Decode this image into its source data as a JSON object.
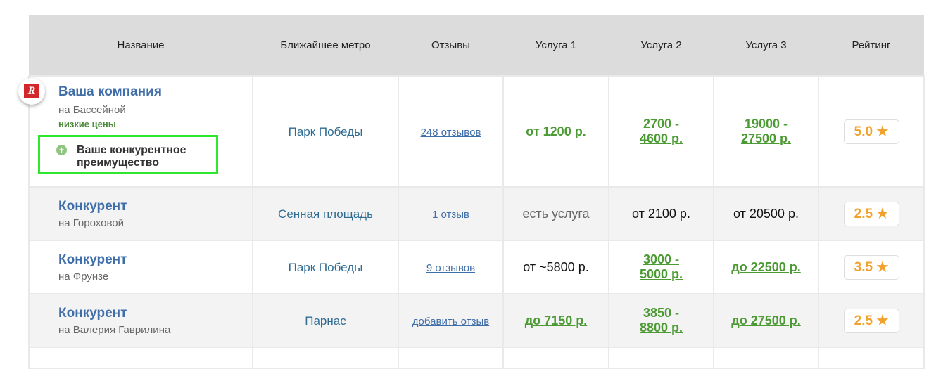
{
  "headers": [
    "Название",
    "Ближайшее метро",
    "Отзывы",
    "Услуга 1",
    "Услуга 2",
    "Услуга 3",
    "Рейтинг"
  ],
  "logo_text": "R",
  "rows": [
    {
      "name": "Ваша компания",
      "address": "на Бассейной",
      "tag": "низкие цены",
      "advantage": "Ваше конкурентное преимущество",
      "metro": "Парк Победы",
      "reviews": "248 отзывов",
      "s1": "от 1200 р.",
      "s2a": "2700 -",
      "s2b": "4600 р.",
      "s3a": "19000 -",
      "s3b": "27500 р.",
      "rating": "5.0"
    },
    {
      "name": "Конкурент",
      "address": "на Гороховой",
      "metro": "Сенная площадь",
      "reviews": "1 отзыв",
      "s1": "есть услуга",
      "s2": "от 2100 р.",
      "s3": "от 20500 р.",
      "rating": "2.5"
    },
    {
      "name": "Конкурент",
      "address": "на Фрунзе",
      "metro": "Парк Победы",
      "reviews": "9 отзывов",
      "s1": "от ~5800 р.",
      "s2a": "3000 -",
      "s2b": "5000 р.",
      "s3pre": "д",
      "s3": "о 22500 р.",
      "rating": "3.5"
    },
    {
      "name": "Конкурент",
      "address": "на Валерия Гаврилина",
      "metro": "Парнас",
      "reviews": "добавить отзыв",
      "s1pre": "д",
      "s1": "о 7150 р.",
      "s2a": "3850 -",
      "s2b": "8800 р.",
      "s3pre": "д",
      "s3": "о 27500 р.",
      "rating": "2.5"
    }
  ],
  "colors": {
    "accent": "#3f6ea8",
    "green": "#4b9a34",
    "rating": "#f0a22c",
    "highlight": "#2ee82e"
  }
}
